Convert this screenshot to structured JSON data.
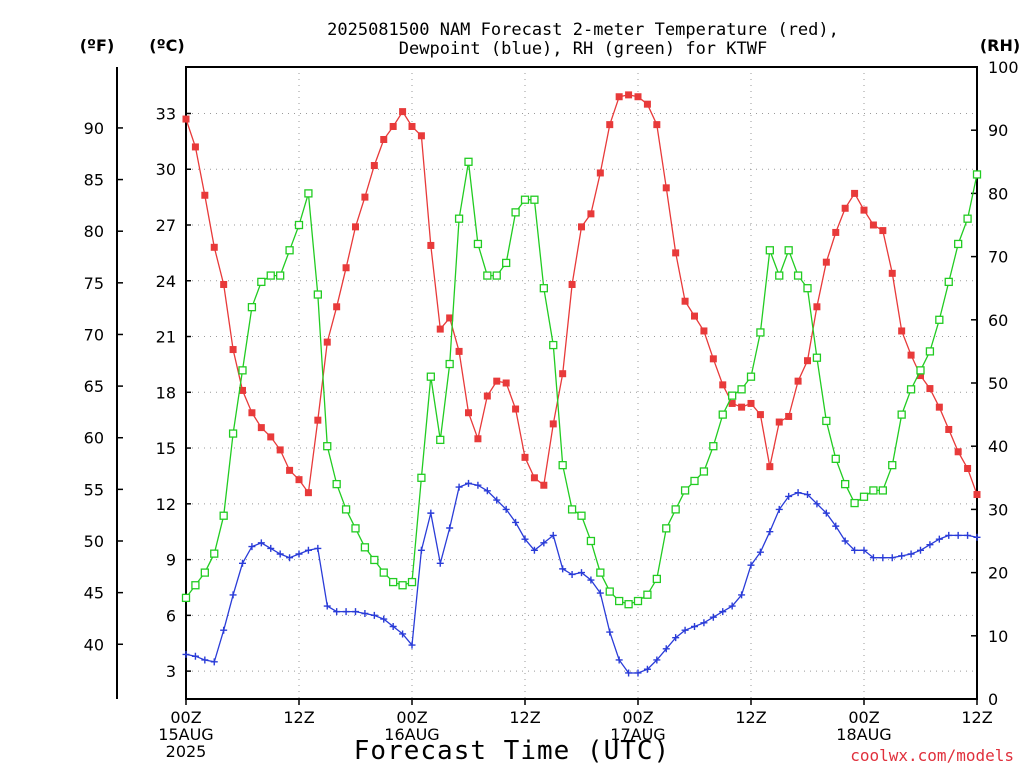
{
  "title_line1": "2025081500 NAM Forecast 2-meter Temperature (red),",
  "title_line2": "Dewpoint (blue), RH (green) for KTWF",
  "unit_f": "(ºF)",
  "unit_c": "(ºC)",
  "unit_rh": "(RH)",
  "xlabel": "Forecast Time (UTC)",
  "credit": "coolwx.com/models",
  "chart_data": {
    "type": "line",
    "title": "2025081500 NAM Forecast 2-meter Temperature (red), Dewpoint (blue), RH (green) for KTWF",
    "xlabel": "Forecast Time (UTC)",
    "x_unit": "forecast hour from 2025-08-15 00Z",
    "xlim": [
      0,
      84
    ],
    "x_ticks": [
      {
        "x": 0,
        "lines": [
          "00Z",
          "15AUG",
          "2025"
        ]
      },
      {
        "x": 12,
        "lines": [
          "12Z"
        ]
      },
      {
        "x": 24,
        "lines": [
          "00Z",
          "16AUG"
        ]
      },
      {
        "x": 36,
        "lines": [
          "12Z"
        ]
      },
      {
        "x": 48,
        "lines": [
          "00Z",
          "17AUG"
        ]
      },
      {
        "x": 60,
        "lines": [
          "12Z"
        ]
      },
      {
        "x": 72,
        "lines": [
          "00Z",
          "18AUG"
        ]
      },
      {
        "x": 84,
        "lines": [
          "12Z"
        ]
      }
    ],
    "y_celsius": {
      "label": "(ºC)",
      "range": [
        1.5,
        35.5
      ],
      "ticks": [
        3,
        6,
        9,
        12,
        15,
        18,
        21,
        24,
        27,
        30,
        33
      ]
    },
    "y_fahrenheit": {
      "label": "(ºF)",
      "ticks": [
        40,
        45,
        50,
        55,
        60,
        65,
        70,
        75,
        80,
        85,
        90
      ]
    },
    "y_rh": {
      "label": "(RH)",
      "range": [
        0,
        100
      ],
      "ticks": [
        0,
        10,
        20,
        30,
        40,
        50,
        60,
        70,
        80,
        90,
        100
      ]
    },
    "grid": true,
    "series": [
      {
        "name": "2-meter Temperature",
        "color": "#e83a3a",
        "marker": "filled-square",
        "axis": "celsius",
        "x": [
          0,
          1,
          2,
          3,
          4,
          5,
          6,
          7,
          8,
          9,
          10,
          11,
          12,
          13,
          14,
          15,
          16,
          17,
          18,
          19,
          20,
          21,
          22,
          23,
          24,
          25,
          26,
          27,
          28,
          29,
          30,
          31,
          32,
          33,
          34,
          35,
          36,
          37,
          38,
          39,
          40,
          41,
          42,
          43,
          44,
          45,
          46,
          47,
          48,
          49,
          50,
          51,
          52,
          53,
          54,
          55,
          56,
          57,
          58,
          59,
          60,
          61,
          62,
          63,
          64,
          65,
          66,
          67,
          68,
          69,
          70,
          71,
          72,
          73,
          74,
          75,
          76,
          77,
          78,
          79,
          80,
          81,
          82,
          83,
          84
        ],
        "values": [
          32.7,
          31.2,
          28.6,
          25.8,
          23.8,
          20.3,
          18.1,
          16.9,
          16.1,
          15.6,
          14.9,
          13.8,
          13.3,
          12.6,
          16.5,
          20.7,
          22.6,
          24.7,
          26.9,
          28.5,
          30.2,
          31.6,
          32.3,
          33.1,
          32.3,
          31.8,
          25.9,
          21.4,
          22.0,
          20.2,
          16.9,
          15.5,
          17.8,
          18.6,
          18.5,
          17.1,
          14.5,
          13.4,
          13.0,
          16.3,
          19.0,
          23.8,
          26.9,
          27.6,
          29.8,
          32.4,
          33.9,
          34.0,
          33.9,
          33.5,
          32.4,
          29.0,
          25.5,
          22.9,
          22.1,
          21.3,
          19.8,
          18.4,
          17.4,
          17.2,
          17.4,
          16.8,
          14.0,
          16.4,
          16.7,
          18.6,
          19.7,
          22.6,
          25.0,
          26.6,
          27.9,
          28.7,
          27.8,
          27.0,
          26.7,
          24.4,
          21.3,
          20.0,
          18.9,
          18.2,
          17.2,
          16.0,
          14.8,
          13.9,
          12.5
        ]
      },
      {
        "name": "Dewpoint",
        "color": "#2a3cd8",
        "marker": "plus",
        "axis": "celsius",
        "x": [
          0,
          1,
          2,
          3,
          4,
          5,
          6,
          7,
          8,
          9,
          10,
          11,
          12,
          13,
          14,
          15,
          16,
          17,
          18,
          19,
          20,
          21,
          22,
          23,
          24,
          25,
          26,
          27,
          28,
          29,
          30,
          31,
          32,
          33,
          34,
          35,
          36,
          37,
          38,
          39,
          40,
          41,
          42,
          43,
          44,
          45,
          46,
          47,
          48,
          49,
          50,
          51,
          52,
          53,
          54,
          55,
          56,
          57,
          58,
          59,
          60,
          61,
          62,
          63,
          64,
          65,
          66,
          67,
          68,
          69,
          70,
          71,
          72,
          73,
          74,
          75,
          76,
          77,
          78,
          79,
          80,
          81,
          82,
          83,
          84
        ],
        "values": [
          3.9,
          3.8,
          3.6,
          3.5,
          5.2,
          7.1,
          8.8,
          9.7,
          9.9,
          9.6,
          9.3,
          9.1,
          9.3,
          9.5,
          9.6,
          6.5,
          6.2,
          6.2,
          6.2,
          6.1,
          6.0,
          5.8,
          5.4,
          5.0,
          4.4,
          9.5,
          11.5,
          8.8,
          10.7,
          12.9,
          13.1,
          13.0,
          12.7,
          12.2,
          11.7,
          11.0,
          10.1,
          9.5,
          9.9,
          10.3,
          8.5,
          8.2,
          8.3,
          7.9,
          7.2,
          5.1,
          3.6,
          2.9,
          2.9,
          3.1,
          3.6,
          4.2,
          4.8,
          5.2,
          5.4,
          5.6,
          5.9,
          6.2,
          6.5,
          7.1,
          8.7,
          9.4,
          10.5,
          11.7,
          12.4,
          12.6,
          12.5,
          12.0,
          11.5,
          10.8,
          10.0,
          9.5,
          9.5,
          9.1,
          9.1,
          9.1,
          9.2,
          9.3,
          9.5,
          9.8,
          10.1,
          10.3,
          10.3,
          10.3,
          10.2
        ]
      },
      {
        "name": "RH",
        "color": "#22cc22",
        "marker": "open-square",
        "axis": "rh",
        "x": [
          0,
          1,
          2,
          3,
          4,
          5,
          6,
          7,
          8,
          9,
          10,
          11,
          12,
          13,
          14,
          15,
          16,
          17,
          18,
          19,
          20,
          21,
          22,
          23,
          24,
          25,
          26,
          27,
          28,
          29,
          30,
          31,
          32,
          33,
          34,
          35,
          36,
          37,
          38,
          39,
          40,
          41,
          42,
          43,
          44,
          45,
          46,
          47,
          48,
          49,
          50,
          51,
          52,
          53,
          54,
          55,
          56,
          57,
          58,
          59,
          60,
          61,
          62,
          63,
          64,
          65,
          66,
          67,
          68,
          69,
          70,
          71,
          72,
          73,
          74,
          75,
          76,
          77,
          78,
          79,
          80,
          81,
          82,
          83,
          84
        ],
        "values": [
          16,
          18,
          20,
          23,
          29,
          42,
          52,
          62,
          66,
          67,
          67,
          71,
          75,
          80,
          64,
          40,
          34,
          30,
          27,
          24,
          22,
          20,
          18.5,
          18,
          18.5,
          35,
          51,
          41,
          53,
          76,
          85,
          72,
          67,
          67,
          69,
          77,
          79,
          79,
          65,
          56,
          37,
          30,
          29,
          25,
          20,
          17,
          15.5,
          15,
          15.5,
          16.5,
          19,
          27,
          30,
          33,
          34.5,
          36,
          40,
          45,
          48,
          49,
          51,
          58,
          71,
          67,
          71,
          67,
          65,
          54,
          44,
          38,
          34,
          31,
          32,
          33,
          33,
          37,
          45,
          49,
          52,
          55,
          60,
          66,
          72,
          76,
          83
        ]
      }
    ]
  }
}
